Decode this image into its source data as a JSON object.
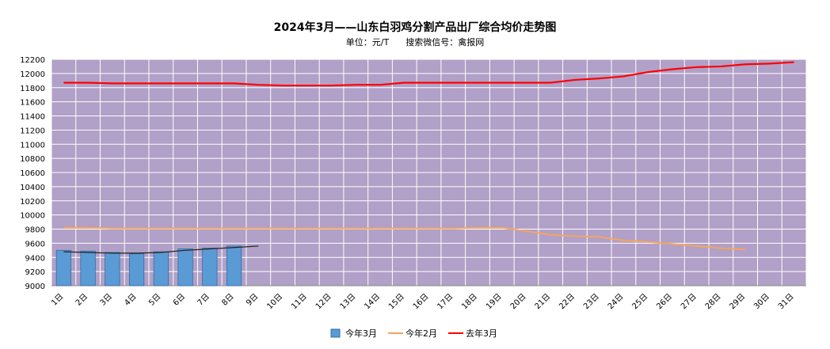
{
  "chart_data": {
    "type": "bar+line",
    "title": "2024年3月——山东白羽鸡分割产品出厂综合均价走势图",
    "subtitle": "单位：元/T      搜索微信号：禽报网",
    "categories": [
      "1日",
      "2日",
      "3日",
      "4日",
      "5日",
      "6日",
      "7日",
      "8日",
      "9日",
      "10日",
      "11日",
      "12日",
      "13日",
      "14日",
      "15日",
      "16日",
      "17日",
      "18日",
      "19日",
      "20日",
      "21日",
      "22日",
      "23日",
      "24日",
      "25日",
      "26日",
      "27日",
      "28日",
      "29日",
      "30日",
      "31日"
    ],
    "ylim": [
      9000,
      12200
    ],
    "yticks": [
      9000,
      9200,
      9400,
      9600,
      9800,
      10000,
      10200,
      10400,
      10600,
      10800,
      11000,
      11200,
      11400,
      11600,
      11800,
      12000,
      12200
    ],
    "series": [
      {
        "name": "今年3月",
        "type": "bar",
        "color": "#5b9bd5",
        "values": [
          9500,
          9490,
          9470,
          9450,
          9480,
          9520,
          9530,
          9560,
          null,
          null,
          null,
          null,
          null,
          null,
          null,
          null,
          null,
          null,
          null,
          null,
          null,
          null,
          null,
          null,
          null,
          null,
          null,
          null,
          null,
          null,
          null
        ]
      },
      {
        "name": "今年2月",
        "type": "line",
        "color": "#f4a460",
        "values": [
          9820,
          9820,
          9810,
          9810,
          9810,
          9810,
          9810,
          9810,
          9810,
          9810,
          9810,
          9810,
          9810,
          9810,
          9810,
          9810,
          9810,
          9820,
          9820,
          9770,
          9720,
          9700,
          9690,
          9640,
          9620,
          9590,
          9560,
          9530,
          9510,
          null,
          null
        ]
      },
      {
        "name": "去年3月",
        "type": "line",
        "color": "#ff0000",
        "values": [
          11870,
          11870,
          11860,
          11860,
          11860,
          11860,
          11860,
          11860,
          11840,
          11830,
          11830,
          11830,
          11840,
          11840,
          11870,
          11870,
          11870,
          11870,
          11870,
          11870,
          11870,
          11910,
          11930,
          11960,
          12020,
          12060,
          12090,
          12100,
          12130,
          12140,
          12160
        ]
      }
    ],
    "trend_line": {
      "color": "#222222",
      "x_start_index": 0,
      "x_end_index": 8,
      "values": [
        9480,
        9470,
        9460,
        9460,
        9470,
        9500,
        9520,
        9540,
        9560
      ]
    },
    "legend_position": "bottom",
    "plot_background": "#b1a0c7",
    "grid": true
  }
}
